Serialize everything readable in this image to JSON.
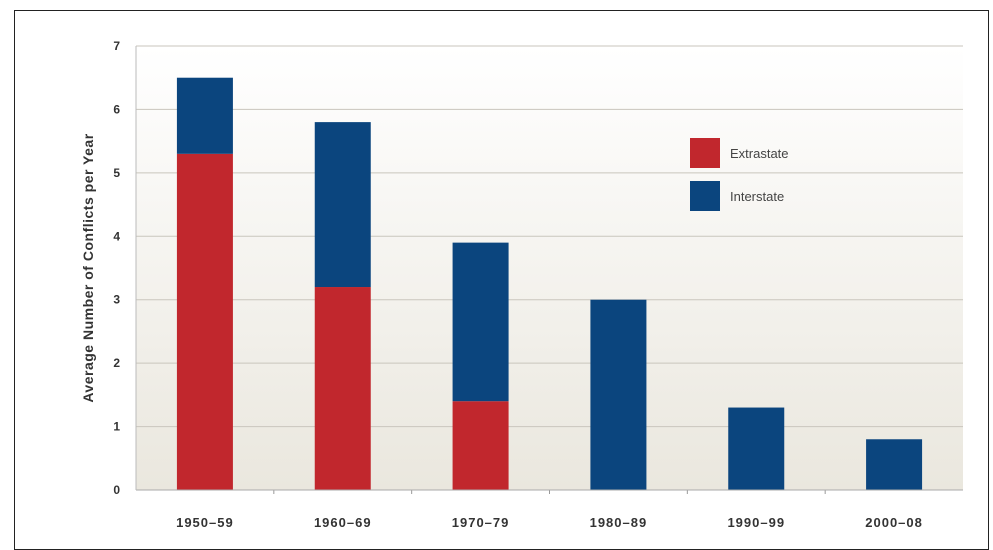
{
  "chart_data": {
    "type": "bar",
    "stacked": true,
    "categories": [
      "1950–59",
      "1960–69",
      "1970–79",
      "1980–89",
      "1990–99",
      "2000–08"
    ],
    "series": [
      {
        "name": "Extrastate",
        "color": "#c1272d",
        "values": [
          5.3,
          3.2,
          1.4,
          0,
          0,
          0
        ]
      },
      {
        "name": "Interstate",
        "color": "#0b457e",
        "values": [
          1.2,
          2.6,
          2.5,
          3.0,
          1.3,
          0.8
        ]
      }
    ],
    "ylabel": "Average Number of Conflicts per Year",
    "xlabel": "",
    "ylim": [
      0,
      7
    ],
    "yticks": [
      0,
      1,
      2,
      3,
      4,
      5,
      6,
      7
    ],
    "grid": true,
    "legend_position": "top-right"
  }
}
